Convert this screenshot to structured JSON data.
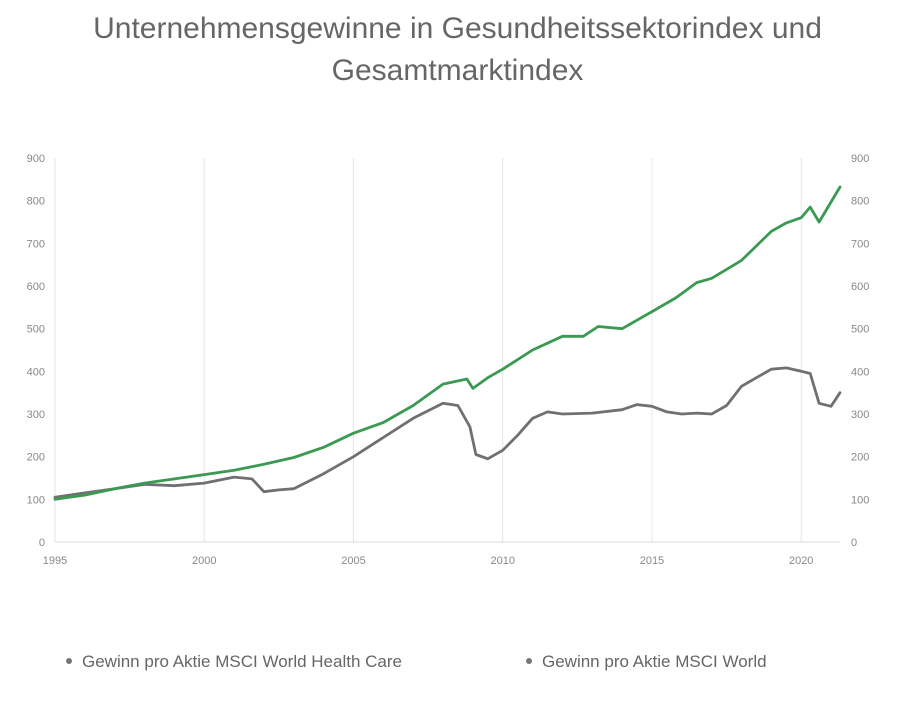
{
  "chart_data": {
    "type": "line",
    "title": "Unternehmensgewinne in Gesundheitssektorindex und Gesamtmarktindex",
    "xlabel": "",
    "ylabel": "",
    "xlim": [
      1995,
      2021.3
    ],
    "ylim": [
      0,
      900
    ],
    "x_ticks": [
      "1995",
      "2000",
      "2005",
      "2010",
      "2015",
      "2020"
    ],
    "y_ticks": [
      "0",
      "100",
      "200",
      "300",
      "400",
      "500",
      "600",
      "700",
      "800",
      "900"
    ],
    "grid": "vertical",
    "legend_position": "bottom",
    "series": [
      {
        "name": "Gewinn pro Aktie MSCI World Health Care",
        "color": "#3a9a52",
        "x": [
          1995,
          1996,
          1997,
          1998,
          1999,
          2000,
          2001,
          2002,
          2003,
          2004,
          2005,
          2006,
          2007,
          2008,
          2008.8,
          2009.0,
          2009.5,
          2010,
          2011,
          2012,
          2012.7,
          2013.2,
          2014,
          2015,
          2015.8,
          2016.5,
          2017,
          2018,
          2019,
          2019.5,
          2020,
          2020.3,
          2020.6,
          2021.3
        ],
        "y": [
          100,
          110,
          125,
          138,
          148,
          158,
          168,
          182,
          198,
          222,
          255,
          280,
          320,
          370,
          382,
          360,
          385,
          405,
          450,
          482,
          482,
          505,
          500,
          540,
          572,
          608,
          618,
          660,
          728,
          748,
          760,
          785,
          750,
          832
        ]
      },
      {
        "name": "Gewinn pro Aktie MSCI World",
        "color": "#707070",
        "x": [
          1995,
          1996,
          1997,
          1998,
          1999,
          2000,
          2001,
          2001.6,
          2002.0,
          2002.5,
          2003.0,
          2004.0,
          2005.0,
          2006.0,
          2007.0,
          2008.0,
          2008.5,
          2008.9,
          2009.1,
          2009.5,
          2010.0,
          2010.5,
          2011.0,
          2011.5,
          2012.0,
          2013.0,
          2014.0,
          2014.5,
          2015.0,
          2015.5,
          2016.0,
          2016.5,
          2017.0,
          2017.5,
          2018.0,
          2018.5,
          2019.0,
          2019.5,
          2020.0,
          2020.3,
          2020.6,
          2021.0,
          2021.3
        ],
        "y": [
          105,
          115,
          125,
          135,
          132,
          138,
          152,
          148,
          118,
          122,
          125,
          160,
          200,
          245,
          290,
          325,
          320,
          270,
          205,
          195,
          215,
          250,
          290,
          305,
          300,
          302,
          310,
          322,
          318,
          305,
          300,
          302,
          300,
          320,
          365,
          385,
          405,
          408,
          400,
          395,
          325,
          318,
          350
        ]
      }
    ]
  }
}
